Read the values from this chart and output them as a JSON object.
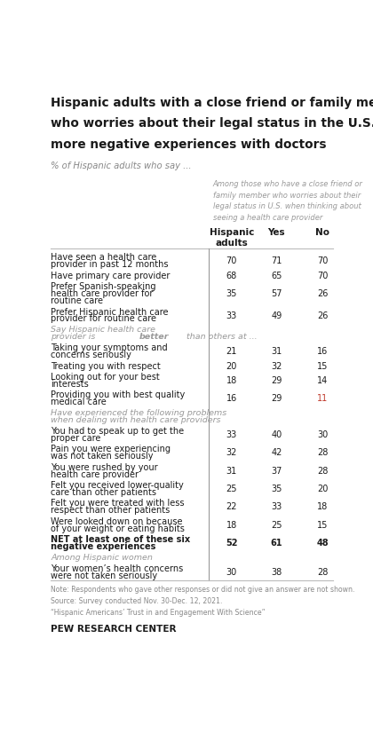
{
  "title_lines": [
    "Hispanic adults with a close friend or family member",
    "who worries about their legal status in the U.S. report",
    "more negative experiences with doctors"
  ],
  "subtitle": "% of Hispanic adults who say ...",
  "col_header_note_lines": [
    "Among those who have a close friend or",
    "family member who worries about their",
    "legal status in U.S. when thinking about",
    "seeing a health care provider"
  ],
  "col_headers": [
    "Hispanic\nadults",
    "Yes",
    "No"
  ],
  "rows": [
    {
      "label": "Have seen a health care\nprovider in past 12 months",
      "values": [
        70,
        71,
        70
      ],
      "style": "normal"
    },
    {
      "label": "Have primary care provider",
      "values": [
        68,
        65,
        70
      ],
      "style": "normal"
    },
    {
      "label": "Prefer Spanish-speaking\nhealth care provider for\nroutine care",
      "values": [
        35,
        57,
        26
      ],
      "style": "normal"
    },
    {
      "label": "Prefer Hispanic health care\nprovider for routine care",
      "values": [
        33,
        49,
        26
      ],
      "style": "normal"
    },
    {
      "label": "Say Hispanic health care\nprovider is better than others at ...",
      "values": [
        null,
        null,
        null
      ],
      "style": "italic_header",
      "has_bold_word": true,
      "bold_word": "better"
    },
    {
      "label": "Taking your symptoms and\nconcerns seriously",
      "values": [
        21,
        31,
        16
      ],
      "style": "normal"
    },
    {
      "label": "Treating you with respect",
      "values": [
        20,
        32,
        15
      ],
      "style": "normal"
    },
    {
      "label": "Looking out for your best\ninterests",
      "values": [
        18,
        29,
        14
      ],
      "style": "normal"
    },
    {
      "label": "Providing you with best quality\nmedical care",
      "values": [
        16,
        29,
        11
      ],
      "style": "normal",
      "highlight_no": true
    },
    {
      "label": "Have experienced the following problems\nwhen dealing with health care providers",
      "values": [
        null,
        null,
        null
      ],
      "style": "italic_header"
    },
    {
      "label": "You had to speak up to get the\nproper care",
      "values": [
        33,
        40,
        30
      ],
      "style": "normal"
    },
    {
      "label": "Pain you were experiencing\nwas not taken seriously",
      "values": [
        32,
        42,
        28
      ],
      "style": "normal"
    },
    {
      "label": "You were rushed by your\nhealth care provider",
      "values": [
        31,
        37,
        28
      ],
      "style": "normal"
    },
    {
      "label": "Felt you received lower-quality\ncare than other patients",
      "values": [
        25,
        35,
        20
      ],
      "style": "normal"
    },
    {
      "label": "Felt you were treated with less\nrespect than other patients",
      "values": [
        22,
        33,
        18
      ],
      "style": "normal"
    },
    {
      "label": "Were looked down on because\nof your weight or eating habits",
      "values": [
        18,
        25,
        15
      ],
      "style": "normal"
    },
    {
      "label": "NET at least one of these six\nnegative experiences",
      "values": [
        52,
        61,
        48
      ],
      "style": "bold"
    },
    {
      "label": "Among Hispanic women",
      "values": [
        null,
        null,
        null
      ],
      "style": "italic_header"
    },
    {
      "label": "Your women’s health concerns\nwere not taken seriously",
      "values": [
        30,
        38,
        28
      ],
      "style": "normal"
    }
  ],
  "note_lines": [
    "Note: Respondents who gave other responses or did not give an answer are not shown.",
    "Source: Survey conducted Nov. 30-Dec. 12, 2021.",
    "“Hispanic Americans’ Trust in and Engagement With Science”"
  ],
  "footer": "PEW RESEARCH CENTER",
  "title_color": "#1a1a1a",
  "subtitle_color": "#888888",
  "normal_color": "#1a1a1a",
  "italic_header_color": "#999999",
  "highlight_color": "#c0392b",
  "value_color": "#1a1a1a",
  "line_color": "#bbbbbb",
  "vertical_line_color": "#999999",
  "note_color": "#888888",
  "background_color": "#ffffff"
}
